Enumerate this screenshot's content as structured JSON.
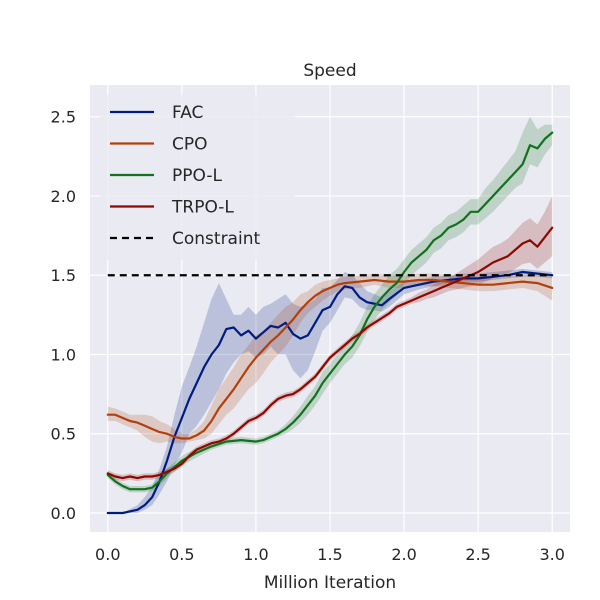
{
  "chart_data": {
    "type": "line",
    "title": "Speed",
    "xlabel": "Million Iteration",
    "ylabel": "",
    "xlim": [
      -0.12,
      3.12
    ],
    "ylim": [
      -0.12,
      2.7
    ],
    "xticks": [
      0.0,
      0.5,
      1.0,
      1.5,
      2.0,
      2.5,
      3.0
    ],
    "xtick_labels": [
      "0.0",
      "0.5",
      "1.0",
      "1.5",
      "2.0",
      "2.5",
      "3.0"
    ],
    "yticks": [
      0.0,
      0.5,
      1.0,
      1.5,
      2.0,
      2.5
    ],
    "ytick_labels": [
      "0.0",
      "0.5",
      "1.0",
      "1.5",
      "2.0",
      "2.5"
    ],
    "grid": true,
    "legend_position": "top-left",
    "background": "#eaeaf2",
    "series": [
      {
        "name": "FAC",
        "color": "#001c7f",
        "x": [
          0,
          0.1,
          0.2,
          0.25,
          0.3,
          0.35,
          0.4,
          0.45,
          0.5,
          0.55,
          0.6,
          0.65,
          0.7,
          0.75,
          0.8,
          0.85,
          0.9,
          0.95,
          1.0,
          1.05,
          1.1,
          1.15,
          1.2,
          1.25,
          1.3,
          1.35,
          1.4,
          1.45,
          1.5,
          1.55,
          1.6,
          1.65,
          1.7,
          1.75,
          1.8,
          1.85,
          1.9,
          2.0,
          2.1,
          2.2,
          2.3,
          2.4,
          2.5,
          2.6,
          2.7,
          2.8,
          2.9,
          3.0
        ],
        "y": [
          0.0,
          0.0,
          0.02,
          0.05,
          0.1,
          0.2,
          0.33,
          0.48,
          0.6,
          0.72,
          0.82,
          0.92,
          1.0,
          1.06,
          1.16,
          1.17,
          1.12,
          1.15,
          1.1,
          1.14,
          1.18,
          1.17,
          1.2,
          1.13,
          1.1,
          1.12,
          1.2,
          1.28,
          1.3,
          1.38,
          1.43,
          1.42,
          1.36,
          1.33,
          1.32,
          1.31,
          1.35,
          1.42,
          1.44,
          1.46,
          1.47,
          1.48,
          1.48,
          1.49,
          1.5,
          1.52,
          1.51,
          1.5
        ],
        "lower": [
          0.0,
          0.0,
          0.0,
          0.02,
          0.05,
          0.12,
          0.2,
          0.3,
          0.38,
          0.5,
          0.55,
          0.62,
          0.7,
          0.78,
          0.88,
          0.95,
          1.0,
          1.02,
          0.98,
          1.0,
          1.05,
          1.0,
          1.0,
          0.9,
          0.85,
          0.9,
          1.02,
          1.15,
          1.2,
          1.28,
          1.36,
          1.35,
          1.3,
          1.28,
          1.28,
          1.27,
          1.3,
          1.38,
          1.41,
          1.43,
          1.45,
          1.46,
          1.46,
          1.47,
          1.48,
          1.49,
          1.49,
          1.48
        ],
        "upper": [
          0.0,
          0.0,
          0.05,
          0.1,
          0.17,
          0.28,
          0.42,
          0.62,
          0.8,
          0.92,
          1.05,
          1.2,
          1.35,
          1.45,
          1.35,
          1.25,
          1.25,
          1.3,
          1.25,
          1.3,
          1.32,
          1.35,
          1.38,
          1.32,
          1.3,
          1.32,
          1.35,
          1.42,
          1.42,
          1.47,
          1.52,
          1.5,
          1.45,
          1.4,
          1.38,
          1.36,
          1.4,
          1.46,
          1.47,
          1.49,
          1.5,
          1.51,
          1.51,
          1.52,
          1.53,
          1.54,
          1.53,
          1.52
        ]
      },
      {
        "name": "CPO",
        "color": "#b1400d",
        "x": [
          0,
          0.05,
          0.1,
          0.15,
          0.2,
          0.25,
          0.3,
          0.35,
          0.4,
          0.45,
          0.5,
          0.55,
          0.6,
          0.65,
          0.7,
          0.75,
          0.8,
          0.85,
          0.9,
          0.95,
          1.0,
          1.05,
          1.1,
          1.15,
          1.2,
          1.25,
          1.3,
          1.35,
          1.4,
          1.45,
          1.5,
          1.55,
          1.6,
          1.7,
          1.8,
          1.9,
          2.0,
          2.1,
          2.2,
          2.3,
          2.4,
          2.5,
          2.6,
          2.7,
          2.8,
          2.9,
          3.0
        ],
        "y": [
          0.62,
          0.62,
          0.6,
          0.58,
          0.57,
          0.55,
          0.53,
          0.51,
          0.5,
          0.48,
          0.47,
          0.47,
          0.49,
          0.52,
          0.58,
          0.66,
          0.72,
          0.78,
          0.85,
          0.92,
          0.98,
          1.03,
          1.08,
          1.12,
          1.17,
          1.22,
          1.28,
          1.33,
          1.37,
          1.4,
          1.42,
          1.44,
          1.45,
          1.46,
          1.47,
          1.46,
          1.46,
          1.47,
          1.47,
          1.46,
          1.45,
          1.44,
          1.44,
          1.45,
          1.46,
          1.45,
          1.42
        ],
        "lower": [
          0.58,
          0.58,
          0.56,
          0.54,
          0.52,
          0.48,
          0.45,
          0.44,
          0.45,
          0.44,
          0.44,
          0.45,
          0.46,
          0.47,
          0.5,
          0.56,
          0.62,
          0.66,
          0.72,
          0.78,
          0.82,
          0.88,
          0.95,
          1.0,
          1.05,
          1.12,
          1.2,
          1.26,
          1.3,
          1.34,
          1.37,
          1.4,
          1.41,
          1.42,
          1.44,
          1.42,
          1.42,
          1.43,
          1.43,
          1.42,
          1.41,
          1.4,
          1.4,
          1.41,
          1.42,
          1.4,
          1.34
        ],
        "upper": [
          0.67,
          0.66,
          0.64,
          0.62,
          0.62,
          0.62,
          0.61,
          0.58,
          0.56,
          0.53,
          0.5,
          0.5,
          0.53,
          0.58,
          0.68,
          0.78,
          0.85,
          0.92,
          1.0,
          1.06,
          1.12,
          1.15,
          1.2,
          1.25,
          1.3,
          1.33,
          1.38,
          1.4,
          1.44,
          1.46,
          1.47,
          1.48,
          1.49,
          1.5,
          1.51,
          1.5,
          1.5,
          1.51,
          1.51,
          1.5,
          1.49,
          1.48,
          1.48,
          1.49,
          1.5,
          1.5,
          1.5
        ]
      },
      {
        "name": "PPO-L",
        "color": "#12711c",
        "x": [
          0,
          0.05,
          0.1,
          0.15,
          0.2,
          0.25,
          0.3,
          0.35,
          0.4,
          0.5,
          0.6,
          0.7,
          0.8,
          0.9,
          1.0,
          1.05,
          1.1,
          1.15,
          1.2,
          1.25,
          1.3,
          1.35,
          1.4,
          1.45,
          1.5,
          1.55,
          1.6,
          1.65,
          1.7,
          1.75,
          1.8,
          1.85,
          1.9,
          1.95,
          2.0,
          2.05,
          2.1,
          2.15,
          2.2,
          2.25,
          2.3,
          2.35,
          2.4,
          2.45,
          2.5,
          2.55,
          2.6,
          2.65,
          2.7,
          2.75,
          2.8,
          2.85,
          2.9,
          2.95,
          3.0
        ],
        "y": [
          0.24,
          0.2,
          0.17,
          0.15,
          0.15,
          0.15,
          0.16,
          0.2,
          0.25,
          0.33,
          0.38,
          0.42,
          0.45,
          0.46,
          0.45,
          0.46,
          0.48,
          0.5,
          0.53,
          0.57,
          0.62,
          0.68,
          0.74,
          0.82,
          0.88,
          0.94,
          1.0,
          1.05,
          1.12,
          1.22,
          1.3,
          1.36,
          1.41,
          1.45,
          1.52,
          1.58,
          1.62,
          1.66,
          1.72,
          1.75,
          1.8,
          1.82,
          1.85,
          1.9,
          1.9,
          1.95,
          2.0,
          2.05,
          2.1,
          2.15,
          2.2,
          2.32,
          2.3,
          2.36,
          2.4
        ],
        "lower": [
          0.22,
          0.18,
          0.15,
          0.13,
          0.13,
          0.13,
          0.14,
          0.17,
          0.22,
          0.3,
          0.35,
          0.4,
          0.43,
          0.44,
          0.43,
          0.44,
          0.46,
          0.48,
          0.5,
          0.53,
          0.57,
          0.62,
          0.68,
          0.75,
          0.82,
          0.88,
          0.94,
          0.98,
          1.05,
          1.14,
          1.22,
          1.28,
          1.33,
          1.37,
          1.44,
          1.5,
          1.54,
          1.58,
          1.64,
          1.67,
          1.72,
          1.74,
          1.77,
          1.82,
          1.82,
          1.86,
          1.9,
          1.95,
          2.0,
          2.05,
          2.08,
          2.2,
          2.18,
          2.26,
          2.32
        ],
        "upper": [
          0.26,
          0.22,
          0.19,
          0.17,
          0.17,
          0.17,
          0.18,
          0.23,
          0.28,
          0.36,
          0.41,
          0.44,
          0.47,
          0.48,
          0.47,
          0.48,
          0.5,
          0.52,
          0.56,
          0.61,
          0.67,
          0.74,
          0.8,
          0.89,
          0.94,
          1.0,
          1.06,
          1.12,
          1.2,
          1.3,
          1.38,
          1.44,
          1.5,
          1.54,
          1.6,
          1.66,
          1.7,
          1.74,
          1.8,
          1.83,
          1.88,
          1.9,
          1.94,
          1.98,
          1.98,
          2.05,
          2.1,
          2.16,
          2.22,
          2.28,
          2.4,
          2.5,
          2.42,
          2.45,
          2.45
        ]
      },
      {
        "name": "TRPO-L",
        "color": "#8c0800",
        "x": [
          0,
          0.05,
          0.1,
          0.15,
          0.2,
          0.25,
          0.3,
          0.35,
          0.4,
          0.45,
          0.5,
          0.55,
          0.6,
          0.65,
          0.7,
          0.75,
          0.8,
          0.85,
          0.9,
          0.95,
          1.0,
          1.05,
          1.1,
          1.15,
          1.2,
          1.25,
          1.3,
          1.35,
          1.4,
          1.45,
          1.5,
          1.55,
          1.6,
          1.65,
          1.7,
          1.75,
          1.8,
          1.85,
          1.9,
          1.95,
          2.0,
          2.05,
          2.1,
          2.15,
          2.2,
          2.25,
          2.3,
          2.35,
          2.4,
          2.45,
          2.5,
          2.55,
          2.6,
          2.65,
          2.7,
          2.75,
          2.8,
          2.85,
          2.9,
          2.95,
          3.0
        ],
        "y": [
          0.25,
          0.23,
          0.22,
          0.23,
          0.22,
          0.23,
          0.23,
          0.24,
          0.26,
          0.28,
          0.31,
          0.36,
          0.4,
          0.42,
          0.44,
          0.45,
          0.47,
          0.5,
          0.54,
          0.58,
          0.6,
          0.63,
          0.68,
          0.72,
          0.74,
          0.75,
          0.78,
          0.82,
          0.86,
          0.92,
          0.98,
          1.02,
          1.06,
          1.1,
          1.13,
          1.17,
          1.2,
          1.23,
          1.26,
          1.3,
          1.32,
          1.34,
          1.36,
          1.38,
          1.4,
          1.42,
          1.44,
          1.46,
          1.48,
          1.5,
          1.52,
          1.55,
          1.58,
          1.6,
          1.62,
          1.66,
          1.7,
          1.72,
          1.68,
          1.74,
          1.8
        ],
        "lower": [
          0.23,
          0.21,
          0.2,
          0.21,
          0.2,
          0.21,
          0.21,
          0.22,
          0.24,
          0.26,
          0.29,
          0.34,
          0.38,
          0.4,
          0.42,
          0.43,
          0.45,
          0.48,
          0.52,
          0.56,
          0.58,
          0.61,
          0.66,
          0.7,
          0.72,
          0.73,
          0.76,
          0.8,
          0.84,
          0.9,
          0.96,
          1.0,
          1.04,
          1.08,
          1.11,
          1.15,
          1.18,
          1.21,
          1.24,
          1.28,
          1.3,
          1.32,
          1.33,
          1.35,
          1.36,
          1.38,
          1.4,
          1.41,
          1.42,
          1.43,
          1.44,
          1.46,
          1.48,
          1.5,
          1.51,
          1.54,
          1.57,
          1.58,
          1.54,
          1.58,
          1.62
        ],
        "upper": [
          0.27,
          0.25,
          0.24,
          0.25,
          0.24,
          0.25,
          0.25,
          0.26,
          0.28,
          0.3,
          0.33,
          0.38,
          0.42,
          0.44,
          0.46,
          0.47,
          0.49,
          0.52,
          0.56,
          0.6,
          0.62,
          0.65,
          0.7,
          0.74,
          0.76,
          0.77,
          0.8,
          0.84,
          0.88,
          0.94,
          1.0,
          1.04,
          1.08,
          1.12,
          1.15,
          1.19,
          1.22,
          1.25,
          1.28,
          1.32,
          1.34,
          1.36,
          1.39,
          1.41,
          1.44,
          1.46,
          1.48,
          1.51,
          1.54,
          1.57,
          1.6,
          1.64,
          1.68,
          1.7,
          1.73,
          1.78,
          1.83,
          1.86,
          1.82,
          1.9,
          2.0
        ]
      }
    ],
    "reference_line": {
      "name": "Constraint",
      "y": 1.5,
      "x_range": [
        0,
        3.0
      ],
      "style": "dashed",
      "color": "#000000"
    }
  }
}
